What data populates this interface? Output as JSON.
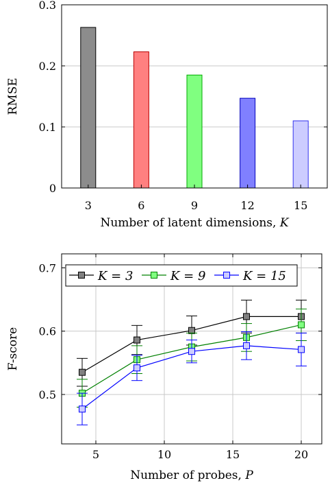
{
  "chart_data": [
    {
      "type": "bar",
      "categories": [
        "3",
        "6",
        "9",
        "12",
        "15"
      ],
      "values": [
        0.263,
        0.223,
        0.185,
        0.147,
        0.11
      ],
      "colors": [
        "#8c8c8c",
        "#ff8080",
        "#80ff80",
        "#8080ff",
        "#ccccff"
      ],
      "edge_colors": [
        "#000000",
        "#bb0000",
        "#00aa00",
        "#0000bb",
        "#3333ee"
      ],
      "xlabel": "Number of latent dimensions, K",
      "ylabel": "RMSE",
      "ylim": [
        0,
        0.3
      ],
      "yticks": [
        "0",
        "0.1",
        "0.2",
        "0.3"
      ],
      "grid": "y"
    },
    {
      "type": "line",
      "x": [
        4,
        8,
        12,
        16,
        20
      ],
      "xticks": [
        "5",
        "10",
        "15",
        "20"
      ],
      "yticks": [
        "0.5",
        "0.6",
        "0.7"
      ],
      "xlim": [
        2.5,
        21.5
      ],
      "ylim": [
        0.422,
        0.722
      ],
      "xlabel": "Number of probes, P",
      "ylabel": "F-score",
      "grid": "both",
      "legend": "top-left",
      "series": [
        {
          "name": "K = 3",
          "values": [
            0.535,
            0.586,
            0.601,
            0.623,
            0.623
          ],
          "errors": [
            0.022,
            0.023,
            0.023,
            0.026,
            0.026
          ],
          "line_color": "#000000",
          "marker_fill": "#808080"
        },
        {
          "name": "K = 9",
          "values": [
            0.502,
            0.555,
            0.575,
            0.59,
            0.61
          ],
          "errors": [
            0.022,
            0.022,
            0.022,
            0.022,
            0.025
          ],
          "line_color": "#008000",
          "marker_fill": "#80ff80"
        },
        {
          "name": "K = 15",
          "values": [
            0.477,
            0.542,
            0.568,
            0.577,
            0.571
          ],
          "errors": [
            0.025,
            0.02,
            0.018,
            0.022,
            0.026
          ],
          "line_color": "#0000ff",
          "marker_fill": "#ccccff"
        }
      ]
    }
  ]
}
